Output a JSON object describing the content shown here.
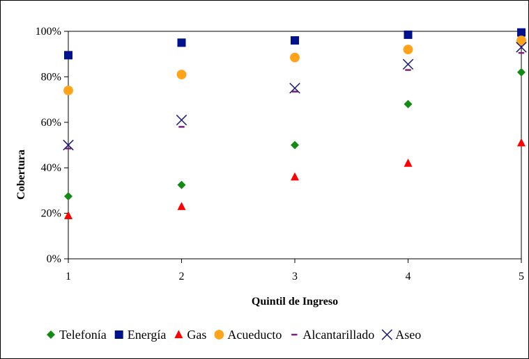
{
  "chart_data": {
    "type": "scatter",
    "title": "",
    "xlabel": "Quintil de Ingreso",
    "ylabel": "Cobertura",
    "x": [
      1,
      2,
      3,
      4,
      5
    ],
    "xlim": [
      1,
      5
    ],
    "ylim": [
      0,
      100
    ],
    "x_ticks": [
      "1",
      "2",
      "3",
      "4",
      "5"
    ],
    "y_ticks": [
      "0%",
      "20%",
      "40%",
      "60%",
      "80%",
      "100%"
    ],
    "grid": false,
    "legend_position": "bottom",
    "series": [
      {
        "name": "Telefonía",
        "marker": "diamond",
        "color": "#138a13",
        "values": [
          27.5,
          32.5,
          50,
          68,
          82
        ]
      },
      {
        "name": "Energía",
        "marker": "square",
        "color": "#00118c",
        "values": [
          89.5,
          95,
          96,
          98.5,
          99.5
        ]
      },
      {
        "name": "Gas",
        "marker": "triangle",
        "color": "#ff0000",
        "values": [
          19,
          23,
          36,
          42,
          51
        ]
      },
      {
        "name": "Acueducto",
        "marker": "circle",
        "color": "#ffa31a",
        "values": [
          74,
          81,
          88.5,
          92,
          96
        ]
      },
      {
        "name": "Alcantarillado",
        "marker": "dash",
        "color": "#7b1f7b",
        "values": [
          48.5,
          58,
          73.5,
          83,
          90.5
        ]
      },
      {
        "name": "Aseo",
        "marker": "x",
        "color": "#1c1c7a",
        "values": [
          50,
          61,
          75,
          85.5,
          93
        ]
      }
    ]
  }
}
